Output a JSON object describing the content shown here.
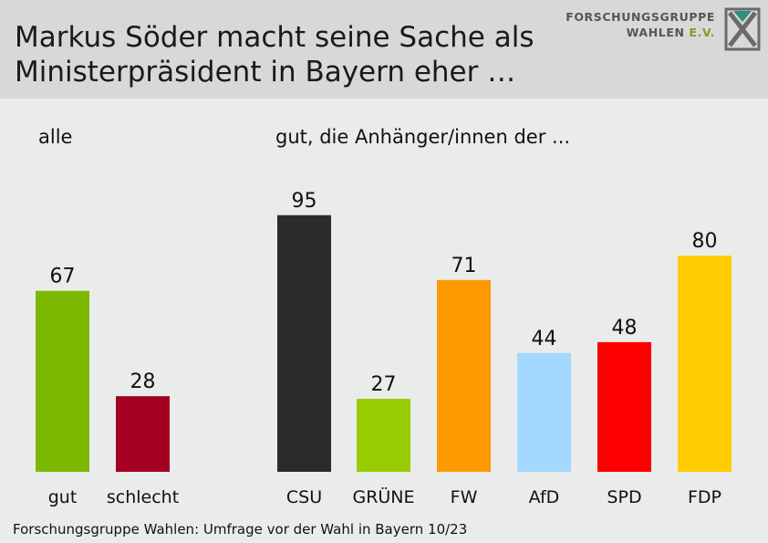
{
  "header": {
    "title_line1": "Markus Söder macht seine Sache als",
    "title_line2": "Ministerpräsident in Bayern eher …",
    "logo_line1": "FORSCHUNGSGRUPPE",
    "logo_line2": "WAHLEN",
    "logo_line2_suffix": "E.V.",
    "logo_icon": "fgw-logo-icon"
  },
  "sections": {
    "left_label": "alle",
    "right_label": "gut, die Anhänger/innen der ..."
  },
  "chart_data": [
    {
      "type": "bar",
      "categories": [
        "gut",
        "schlecht"
      ],
      "values": [
        67,
        28
      ],
      "colors": [
        "#7db800",
        "#a50021"
      ],
      "ylim": [
        0,
        100
      ]
    },
    {
      "type": "bar",
      "categories": [
        "CSU",
        "GRÜNE",
        "FW",
        "AfD",
        "SPD",
        "FDP"
      ],
      "values": [
        95,
        27,
        71,
        44,
        48,
        80
      ],
      "colors": [
        "#2b2b2b",
        "#99cc00",
        "#ff9900",
        "#a3d9ff",
        "#ff0000",
        "#ffcc00"
      ],
      "ylim": [
        0,
        100
      ]
    }
  ],
  "footer": {
    "source": "Forschungsgruppe Wahlen: Umfrage vor der Wahl in Bayern 10/23"
  }
}
